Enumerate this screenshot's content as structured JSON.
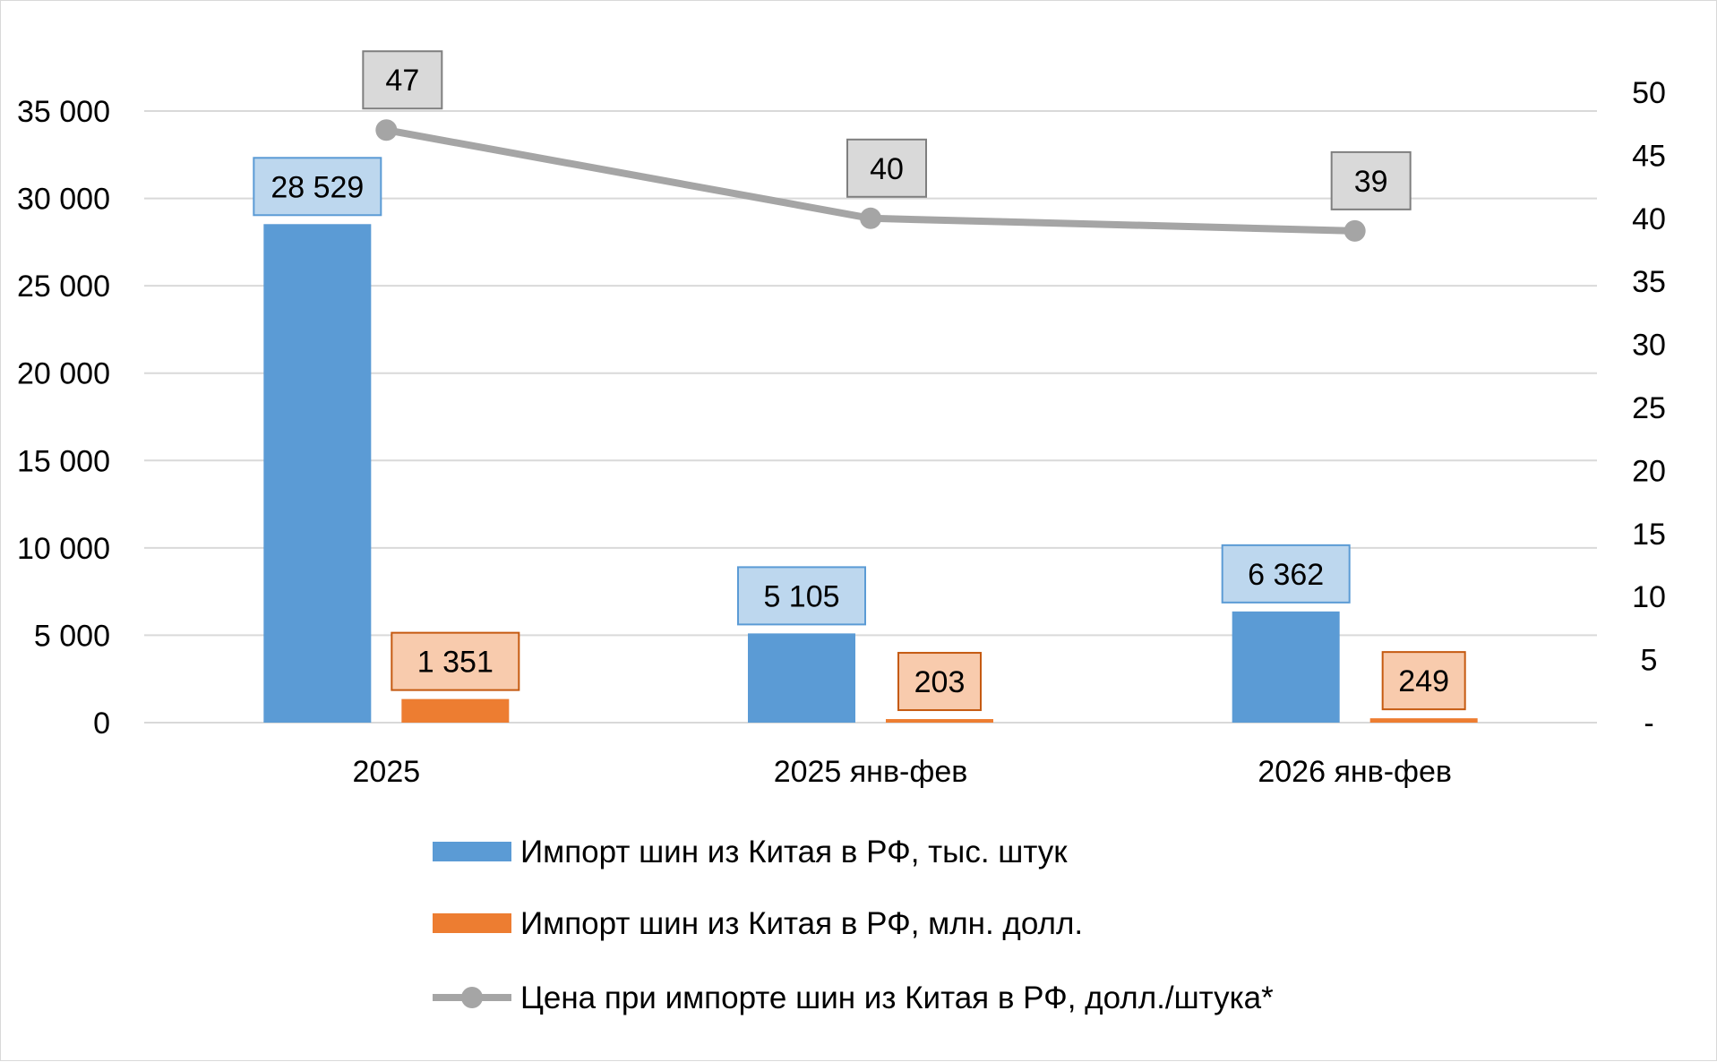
{
  "chart_data": {
    "type": "bar",
    "categories": [
      "2025",
      "2025 янв-фев",
      "2026 янв-фев"
    ],
    "series": [
      {
        "name": "Импорт шин из Китая в РФ, тыс. штук",
        "type": "bar",
        "axis": "left",
        "color": "#5b9bd5",
        "label_fill": "#bdd7ee",
        "label_stroke": "#5b9bd5",
        "values": [
          28529,
          5105,
          6362
        ],
        "labels": [
          "28 529",
          "5 105",
          "6 362"
        ]
      },
      {
        "name": "Импорт шин из Китая в РФ, млн. долл.",
        "type": "bar",
        "axis": "left",
        "color": "#ed7d31",
        "label_fill": "#f8cbad",
        "label_stroke": "#c55a11",
        "values": [
          1351,
          203,
          249
        ],
        "labels": [
          "1 351",
          "203",
          "249"
        ]
      },
      {
        "name": "Цена при импорте шин из Китая в РФ, долл./штука*",
        "type": "line",
        "axis": "right",
        "color": "#a5a5a5",
        "label_fill": "#d9d9d9",
        "label_stroke": "#7f7f7f",
        "values": [
          47,
          40,
          39
        ],
        "labels": [
          "47",
          "40",
          "39"
        ]
      }
    ],
    "y_left": {
      "ylim": [
        0,
        35000
      ],
      "ticks": [
        0,
        5000,
        10000,
        15000,
        20000,
        25000,
        30000,
        35000
      ],
      "tick_labels": [
        "0",
        "5 000",
        "10 000",
        "15 000",
        "20 000",
        "25 000",
        "30 000",
        "35 000"
      ]
    },
    "y_right": {
      "ylim": [
        0,
        50
      ],
      "ticks": [
        0,
        5,
        10,
        15,
        20,
        25,
        30,
        35,
        40,
        45,
        50
      ],
      "tick_labels": [
        "-",
        "5",
        "10",
        "15",
        "20",
        "25",
        "30",
        "35",
        "40",
        "45",
        "50"
      ]
    },
    "grid": true,
    "legend": "bottom",
    "title": "",
    "xlabel": "",
    "ylabel": ""
  }
}
